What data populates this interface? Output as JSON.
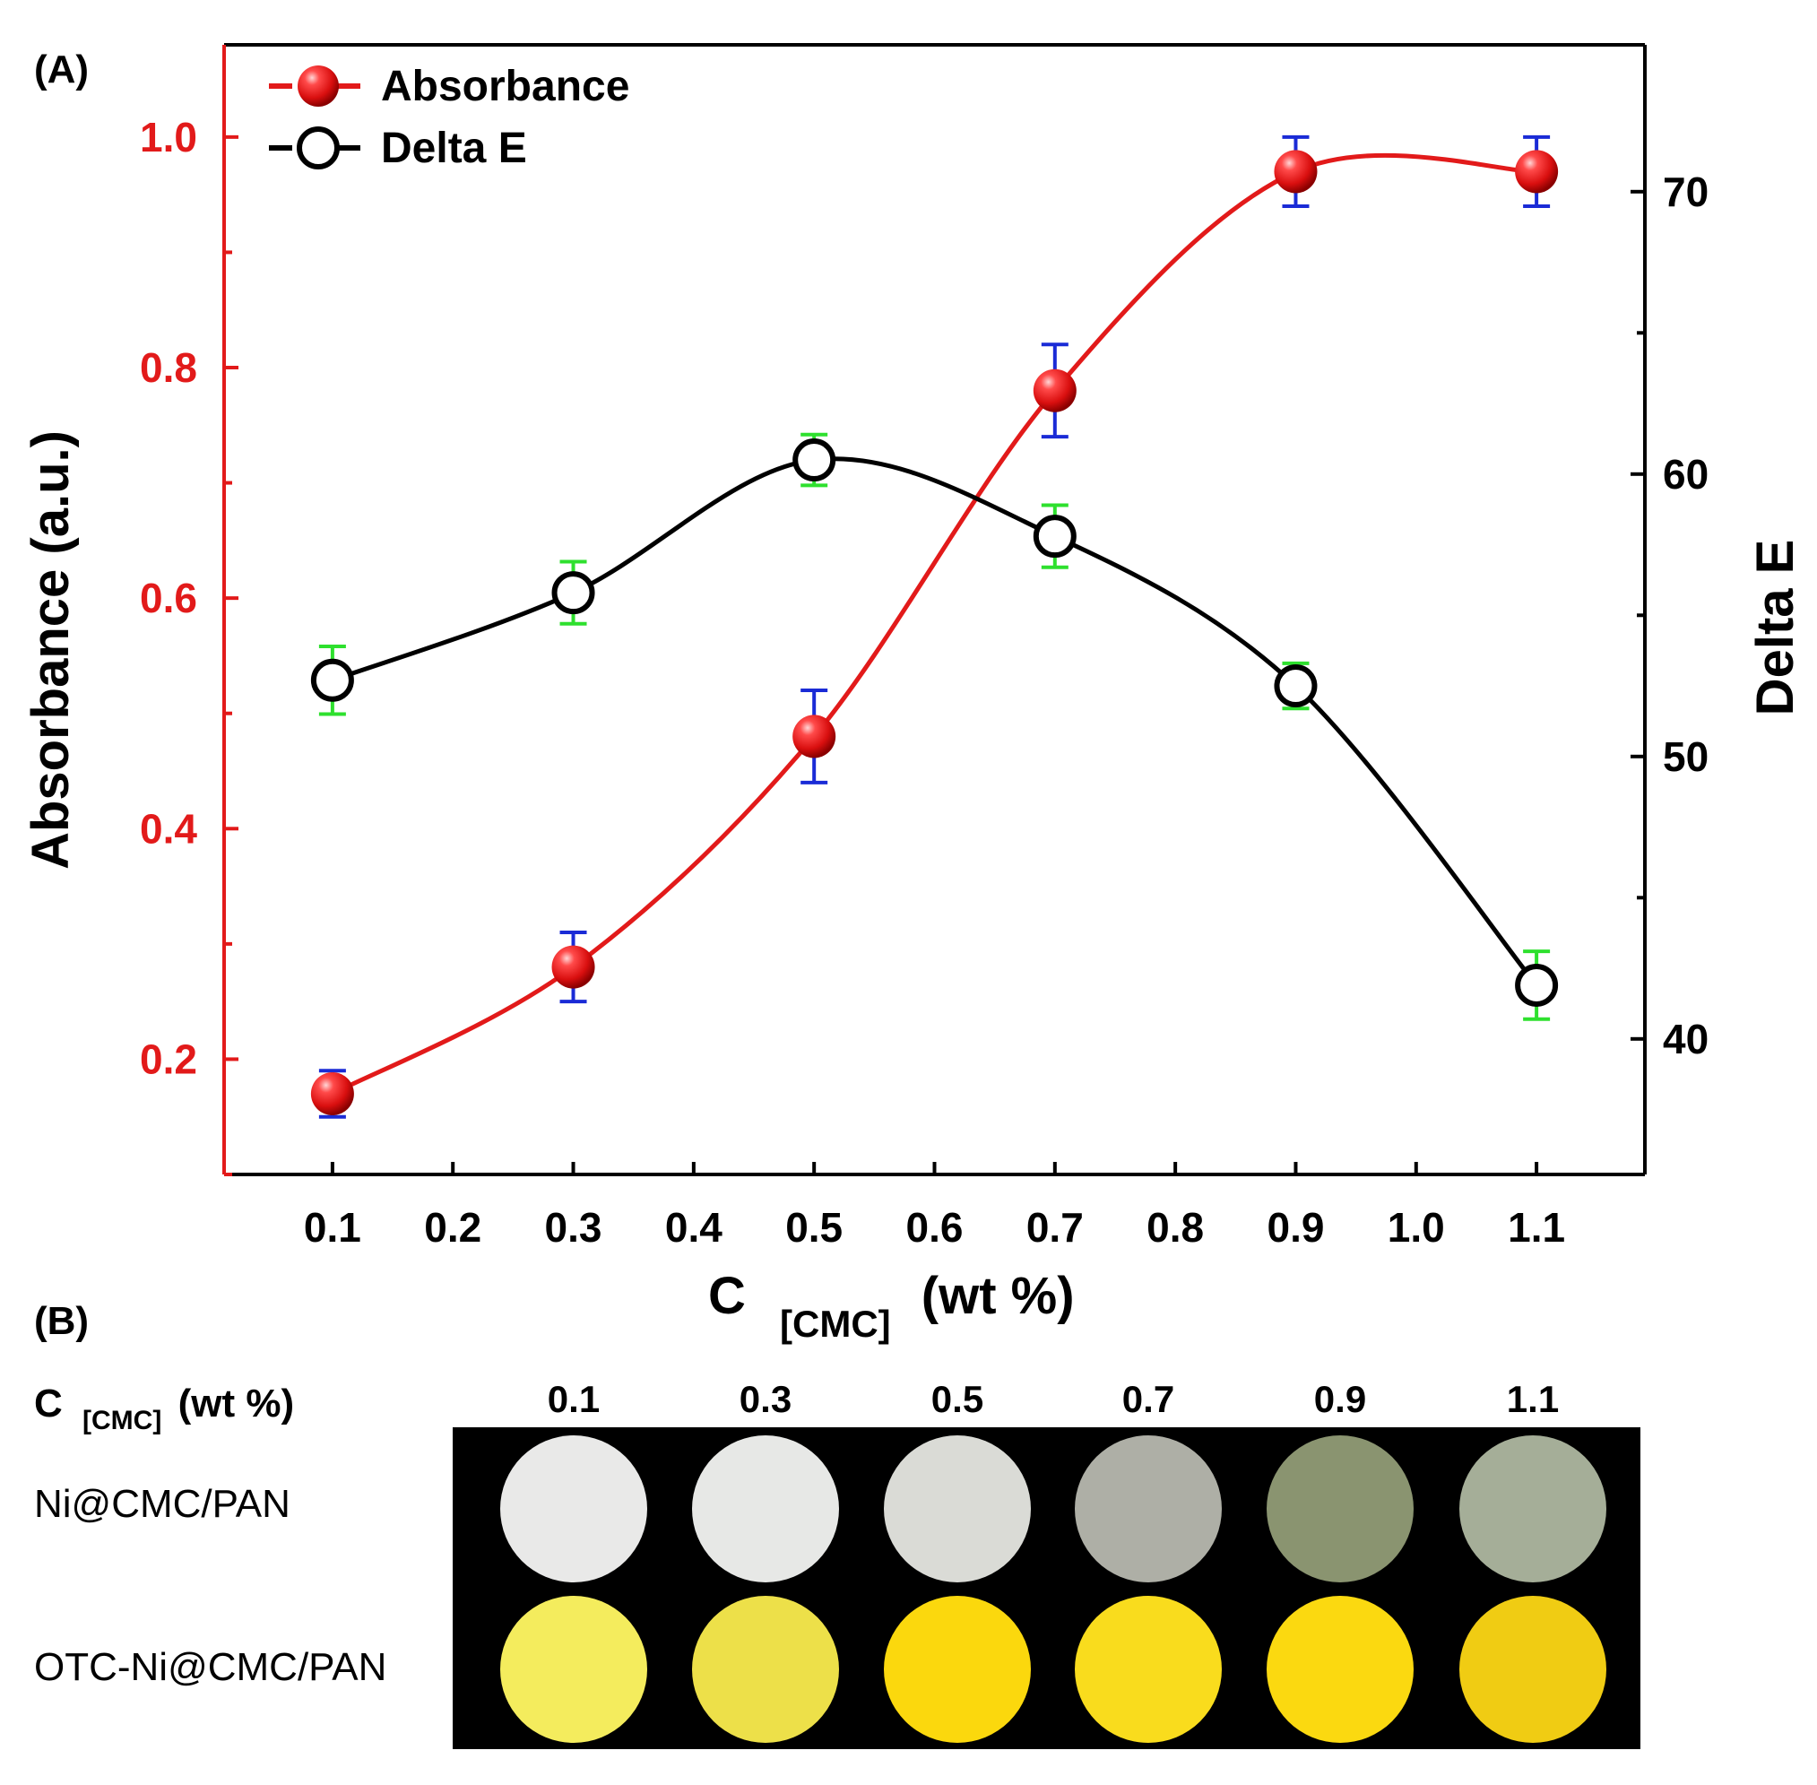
{
  "panel_a_label": "(A)",
  "panel_b_label": "(B)",
  "chart_data": {
    "type": "line",
    "x": [
      0.1,
      0.3,
      0.5,
      0.7,
      0.9,
      1.1
    ],
    "xlabel_main": "C",
    "xlabel_sub": "[CMC]",
    "xlabel_unit": "(wt %)",
    "x_ticks": [
      "0.1",
      "0.2",
      "0.3",
      "0.4",
      "0.5",
      "0.6",
      "0.7",
      "0.8",
      "0.9",
      "1.0",
      "1.1"
    ],
    "xlim": [
      0.01,
      1.19
    ],
    "ylabel_left": "Absorbance (a.u.)",
    "ylabel_right": "Delta E",
    "ylim_left": [
      0.1,
      1.08
    ],
    "ylim_right": [
      35.2,
      75.2
    ],
    "y_ticks_left": [
      "0.2",
      "0.4",
      "0.6",
      "0.8",
      "1.0"
    ],
    "y_ticks_right": [
      "40",
      "50",
      "60",
      "70"
    ],
    "series": [
      {
        "name": "Absorbance",
        "axis": "left",
        "color": "#e21a1a",
        "error_color": "#1a2bd6",
        "marker": "filled-sphere",
        "values": [
          0.17,
          0.28,
          0.48,
          0.78,
          0.97,
          0.97
        ],
        "errors": [
          0.02,
          0.03,
          0.04,
          0.04,
          0.03,
          0.03
        ]
      },
      {
        "name": "Delta E",
        "axis": "right",
        "color": "#000000",
        "error_color": "#2ee02e",
        "marker": "open-circle",
        "values": [
          52.7,
          55.8,
          60.5,
          57.8,
          52.5,
          41.9
        ],
        "errors": [
          1.2,
          1.1,
          0.9,
          1.1,
          0.8,
          1.2
        ]
      }
    ]
  },
  "swatches": {
    "label_main": "C",
    "label_sub": "[CMC]",
    "label_unit": "(wt %)",
    "concentrations": [
      "0.1",
      "0.3",
      "0.5",
      "0.7",
      "0.9",
      "1.1"
    ],
    "rows": [
      {
        "label": "Ni@CMC/PAN",
        "colors": [
          "#e9e9e8",
          "#e7e8e6",
          "#dadbd6",
          "#aeafa6",
          "#8a9470",
          "#a5ae98"
        ]
      },
      {
        "label": "OTC-Ni@CMC/PAN",
        "colors": [
          "#f4ec5d",
          "#ede049",
          "#fbd80d",
          "#f9dc1d",
          "#fbd910",
          "#f0cc13"
        ]
      }
    ]
  }
}
